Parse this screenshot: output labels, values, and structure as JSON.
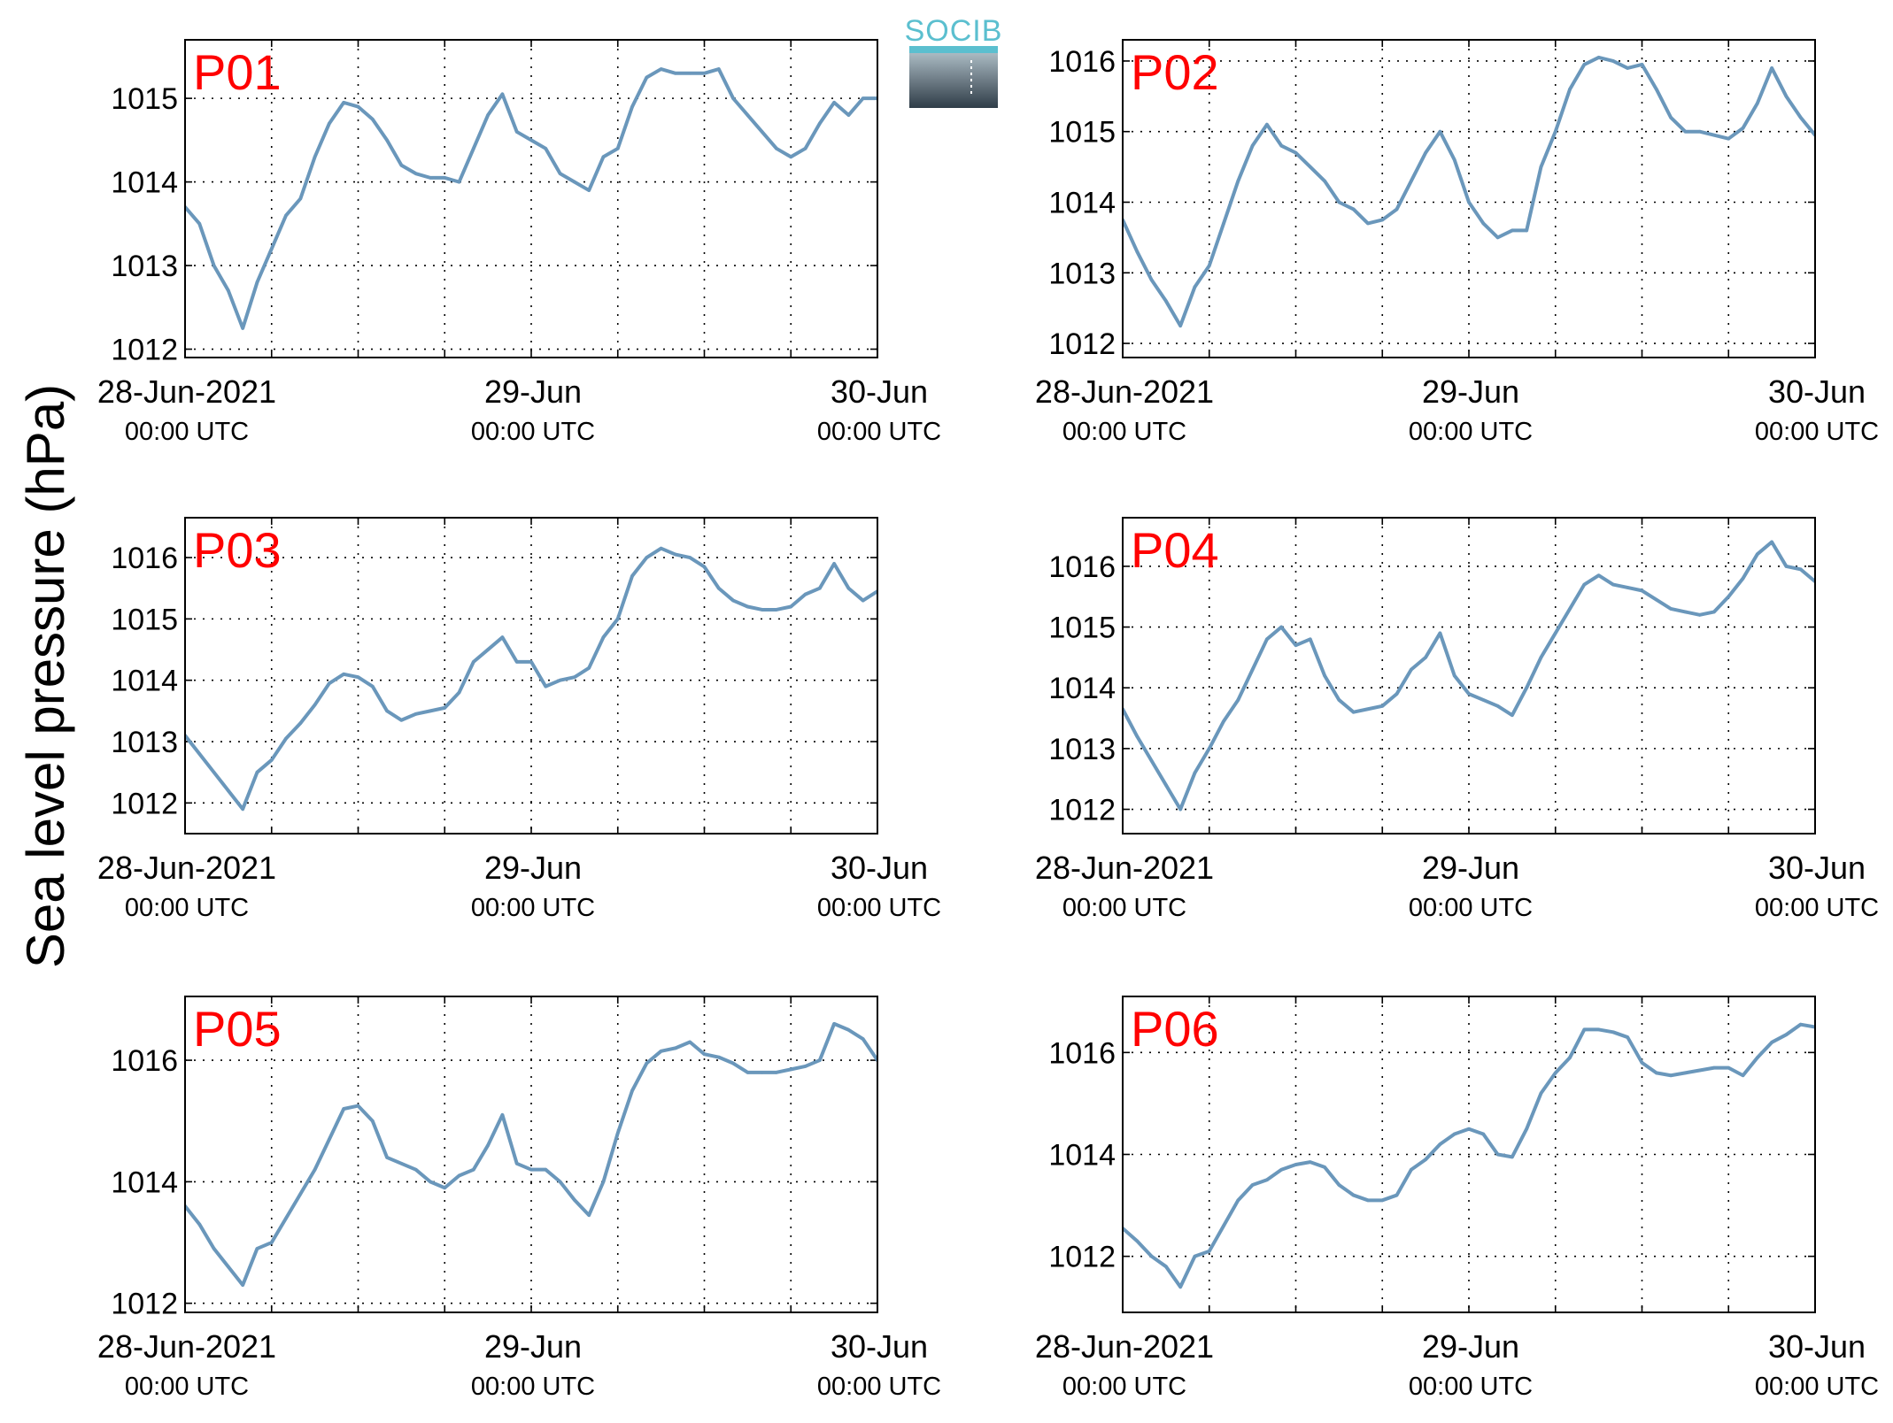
{
  "figure": {
    "ylabel": "Sea level pressure (hPa)",
    "logo": {
      "text": "SOCIB",
      "top_color": "#5bbfcf",
      "bottom_color": "#2f3d48"
    },
    "line_color": "#6a97bb",
    "panel_label_color": "#ff0000",
    "x_ticks": [
      {
        "line1": "28-Jun-2021",
        "line2": "00:00 UTC"
      },
      {
        "line1": "29-Jun",
        "line2": "00:00 UTC"
      },
      {
        "line1": "30-Jun",
        "line2": "00:00 UTC"
      }
    ]
  },
  "chart_data": [
    {
      "type": "line",
      "title": "P01",
      "xlabel": "",
      "ylabel": "",
      "x_unit": "hours since 28-Jun-2021 00:00 UTC",
      "xlim": [
        0,
        48
      ],
      "ylim": [
        1011.9,
        1015.7
      ],
      "yticks": [
        1012,
        1013,
        1014,
        1015
      ],
      "grid": true,
      "x": [
        0,
        1,
        2,
        3,
        4,
        5,
        6,
        7,
        8,
        9,
        10,
        11,
        12,
        13,
        14,
        15,
        16,
        17,
        18,
        19,
        20,
        21,
        22,
        23,
        24,
        25,
        26,
        27,
        28,
        29,
        30,
        31,
        32,
        33,
        34,
        35,
        36,
        37,
        38,
        39,
        40,
        41,
        42,
        43,
        44,
        45,
        46,
        47,
        48
      ],
      "values": [
        1013.7,
        1013.5,
        1013.0,
        1012.7,
        1012.25,
        1012.8,
        1013.2,
        1013.6,
        1013.8,
        1014.3,
        1014.7,
        1014.95,
        1014.9,
        1014.75,
        1014.5,
        1014.2,
        1014.1,
        1014.05,
        1014.05,
        1014.0,
        1014.4,
        1014.8,
        1015.05,
        1014.6,
        1014.5,
        1014.4,
        1014.1,
        1014.0,
        1013.9,
        1014.3,
        1014.4,
        1014.9,
        1015.25,
        1015.35,
        1015.3,
        1015.3,
        1015.3,
        1015.35,
        1015.0,
        1014.8,
        1014.6,
        1014.4,
        1014.3,
        1014.4,
        1014.7,
        1014.95,
        1014.8,
        1015.0,
        1015.0
      ]
    },
    {
      "type": "line",
      "title": "P02",
      "xlabel": "",
      "ylabel": "",
      "x_unit": "hours since 28-Jun-2021 00:00 UTC",
      "xlim": [
        0,
        48
      ],
      "ylim": [
        1011.8,
        1016.3
      ],
      "yticks": [
        1012,
        1013,
        1014,
        1015,
        1016
      ],
      "grid": true,
      "x": [
        0,
        1,
        2,
        3,
        4,
        5,
        6,
        7,
        8,
        9,
        10,
        11,
        12,
        13,
        14,
        15,
        16,
        17,
        18,
        19,
        20,
        21,
        22,
        23,
        24,
        25,
        26,
        27,
        28,
        29,
        30,
        31,
        32,
        33,
        34,
        35,
        36,
        37,
        38,
        39,
        40,
        41,
        42,
        43,
        44,
        45,
        46,
        47,
        48
      ],
      "values": [
        1013.75,
        1013.3,
        1012.9,
        1012.6,
        1012.25,
        1012.8,
        1013.1,
        1013.7,
        1014.3,
        1014.8,
        1015.1,
        1014.8,
        1014.7,
        1014.5,
        1014.3,
        1014.0,
        1013.9,
        1013.7,
        1013.75,
        1013.9,
        1014.3,
        1014.7,
        1015.0,
        1014.6,
        1014.0,
        1013.7,
        1013.5,
        1013.6,
        1013.6,
        1014.5,
        1015.0,
        1015.6,
        1015.95,
        1016.05,
        1016.0,
        1015.9,
        1015.95,
        1015.6,
        1015.2,
        1015.0,
        1015.0,
        1014.95,
        1014.9,
        1015.05,
        1015.4,
        1015.9,
        1015.5,
        1015.2,
        1014.95
      ]
    },
    {
      "type": "line",
      "title": "P03",
      "xlabel": "",
      "ylabel": "",
      "x_unit": "hours since 28-Jun-2021 00:00 UTC",
      "xlim": [
        0,
        48
      ],
      "ylim": [
        1011.5,
        1016.65
      ],
      "yticks": [
        1012,
        1013,
        1014,
        1015,
        1016
      ],
      "grid": true,
      "x": [
        0,
        1,
        2,
        3,
        4,
        5,
        6,
        7,
        8,
        9,
        10,
        11,
        12,
        13,
        14,
        15,
        16,
        17,
        18,
        19,
        20,
        21,
        22,
        23,
        24,
        25,
        26,
        27,
        28,
        29,
        30,
        31,
        32,
        33,
        34,
        35,
        36,
        37,
        38,
        39,
        40,
        41,
        42,
        43,
        44,
        45,
        46,
        47,
        48
      ],
      "values": [
        1013.1,
        1012.8,
        1012.5,
        1012.2,
        1011.9,
        1012.5,
        1012.7,
        1013.05,
        1013.3,
        1013.6,
        1013.95,
        1014.1,
        1014.05,
        1013.9,
        1013.5,
        1013.35,
        1013.45,
        1013.5,
        1013.55,
        1013.8,
        1014.3,
        1014.5,
        1014.7,
        1014.3,
        1014.3,
        1013.9,
        1014.0,
        1014.05,
        1014.2,
        1014.7,
        1015.0,
        1015.7,
        1016.0,
        1016.15,
        1016.05,
        1016.0,
        1015.85,
        1015.5,
        1015.3,
        1015.2,
        1015.15,
        1015.15,
        1015.2,
        1015.4,
        1015.5,
        1015.9,
        1015.5,
        1015.3,
        1015.45
      ]
    },
    {
      "type": "line",
      "title": "P04",
      "xlabel": "",
      "ylabel": "",
      "x_unit": "hours since 28-Jun-2021 00:00 UTC",
      "xlim": [
        0,
        48
      ],
      "ylim": [
        1011.6,
        1016.8
      ],
      "yticks": [
        1012,
        1013,
        1014,
        1015,
        1016
      ],
      "grid": true,
      "x": [
        0,
        1,
        2,
        3,
        4,
        5,
        6,
        7,
        8,
        9,
        10,
        11,
        12,
        13,
        14,
        15,
        16,
        17,
        18,
        19,
        20,
        21,
        22,
        23,
        24,
        25,
        26,
        27,
        28,
        29,
        30,
        31,
        32,
        33,
        34,
        35,
        36,
        37,
        38,
        39,
        40,
        41,
        42,
        43,
        44,
        45,
        46,
        47,
        48
      ],
      "values": [
        1013.65,
        1013.2,
        1012.8,
        1012.4,
        1012.0,
        1012.6,
        1013.0,
        1013.45,
        1013.8,
        1014.3,
        1014.8,
        1015.0,
        1014.7,
        1014.8,
        1014.2,
        1013.8,
        1013.6,
        1013.65,
        1013.7,
        1013.9,
        1014.3,
        1014.5,
        1014.9,
        1014.2,
        1013.9,
        1013.8,
        1013.7,
        1013.55,
        1014.0,
        1014.5,
        1014.9,
        1015.3,
        1015.7,
        1015.85,
        1015.7,
        1015.65,
        1015.6,
        1015.45,
        1015.3,
        1015.25,
        1015.2,
        1015.25,
        1015.5,
        1015.8,
        1016.2,
        1016.4,
        1016.0,
        1015.95,
        1015.75
      ]
    },
    {
      "type": "line",
      "title": "P05",
      "xlabel": "",
      "ylabel": "",
      "x_unit": "hours since 28-Jun-2021 00:00 UTC",
      "xlim": [
        0,
        48
      ],
      "ylim": [
        1011.85,
        1017.05
      ],
      "yticks": [
        1012,
        1014,
        1016
      ],
      "grid": true,
      "x": [
        0,
        1,
        2,
        3,
        4,
        5,
        6,
        7,
        8,
        9,
        10,
        11,
        12,
        13,
        14,
        15,
        16,
        17,
        18,
        19,
        20,
        21,
        22,
        23,
        24,
        25,
        26,
        27,
        28,
        29,
        30,
        31,
        32,
        33,
        34,
        35,
        36,
        37,
        38,
        39,
        40,
        41,
        42,
        43,
        44,
        45,
        46,
        47,
        48
      ],
      "values": [
        1013.6,
        1013.3,
        1012.9,
        1012.6,
        1012.3,
        1012.9,
        1013.0,
        1013.4,
        1013.8,
        1014.2,
        1014.7,
        1015.2,
        1015.25,
        1015.0,
        1014.4,
        1014.3,
        1014.2,
        1014.0,
        1013.9,
        1014.1,
        1014.2,
        1014.6,
        1015.1,
        1014.3,
        1014.2,
        1014.2,
        1014.0,
        1013.7,
        1013.45,
        1014.0,
        1014.8,
        1015.5,
        1015.95,
        1016.15,
        1016.2,
        1016.3,
        1016.1,
        1016.05,
        1015.95,
        1015.8,
        1015.8,
        1015.8,
        1015.85,
        1015.9,
        1016.0,
        1016.6,
        1016.5,
        1016.35,
        1016.0
      ]
    },
    {
      "type": "line",
      "title": "P06",
      "xlabel": "",
      "ylabel": "",
      "x_unit": "hours since 28-Jun-2021 00:00 UTC",
      "xlim": [
        0,
        48
      ],
      "ylim": [
        1010.9,
        1017.1
      ],
      "yticks": [
        1012,
        1014,
        1016
      ],
      "grid": true,
      "x": [
        0,
        1,
        2,
        3,
        4,
        5,
        6,
        7,
        8,
        9,
        10,
        11,
        12,
        13,
        14,
        15,
        16,
        17,
        18,
        19,
        20,
        21,
        22,
        23,
        24,
        25,
        26,
        27,
        28,
        29,
        30,
        31,
        32,
        33,
        34,
        35,
        36,
        37,
        38,
        39,
        40,
        41,
        42,
        43,
        44,
        45,
        46,
        47,
        48
      ],
      "values": [
        1012.55,
        1012.3,
        1012.0,
        1011.8,
        1011.4,
        1012.0,
        1012.1,
        1012.6,
        1013.1,
        1013.4,
        1013.5,
        1013.7,
        1013.8,
        1013.85,
        1013.75,
        1013.4,
        1013.2,
        1013.1,
        1013.1,
        1013.2,
        1013.7,
        1013.9,
        1014.2,
        1014.4,
        1014.5,
        1014.4,
        1014.0,
        1013.95,
        1014.5,
        1015.2,
        1015.6,
        1015.9,
        1016.45,
        1016.45,
        1016.4,
        1016.3,
        1015.8,
        1015.6,
        1015.55,
        1015.6,
        1015.65,
        1015.7,
        1015.7,
        1015.55,
        1015.9,
        1016.2,
        1016.35,
        1016.55,
        1016.5
      ]
    }
  ]
}
